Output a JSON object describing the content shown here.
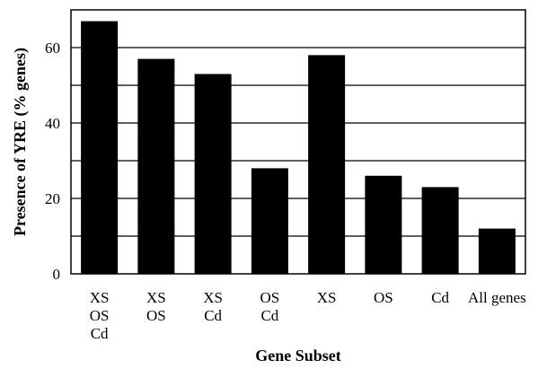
{
  "chart_data": {
    "type": "bar",
    "xlabel": "Gene Subset",
    "ylabel": "Presence of YRE (% genes)",
    "ylim": [
      0,
      70
    ],
    "yticks": [
      0,
      20,
      40,
      60
    ],
    "gridlines": [
      10,
      20,
      30,
      40,
      50,
      60
    ],
    "grid": true,
    "categories": [
      [
        "XS",
        "OS",
        "Cd"
      ],
      [
        "XS",
        "OS"
      ],
      [
        "XS",
        "Cd"
      ],
      [
        "OS",
        "Cd"
      ],
      [
        "XS"
      ],
      [
        "OS"
      ],
      [
        "Cd"
      ],
      [
        "All genes"
      ]
    ],
    "values": [
      67,
      57,
      53,
      28,
      58,
      26,
      23,
      12
    ],
    "bar_color": "#000000",
    "grid_color": "#000000"
  }
}
